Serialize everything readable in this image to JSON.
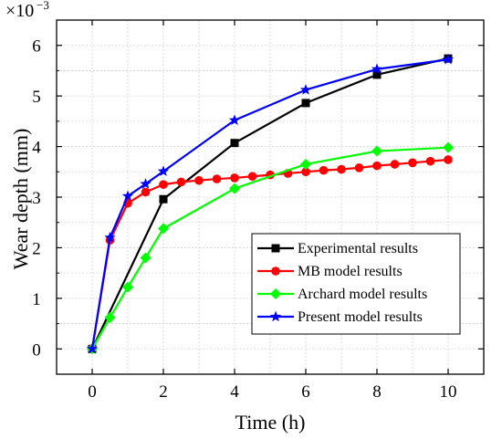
{
  "chart_data": {
    "type": "line",
    "title": "",
    "xlabel": "Time (h)",
    "ylabel": "Wear depth (mm)",
    "y_multiplier": {
      "base": "×10",
      "exponent": "−3"
    },
    "xlim": [
      -1,
      11
    ],
    "ylim": [
      -0.5,
      6.5
    ],
    "xticks": [
      0,
      2,
      4,
      6,
      8,
      10
    ],
    "yticks": [
      0,
      1,
      2,
      3,
      4,
      5,
      6
    ],
    "grid": true,
    "legend_position": "lower-right",
    "series": [
      {
        "name": "Experimental results",
        "color": "#000000",
        "marker": "square",
        "x": [
          0,
          2,
          4,
          6,
          8,
          10
        ],
        "y": [
          0,
          2.96,
          4.07,
          4.86,
          5.42,
          5.74
        ]
      },
      {
        "name": "MB model results",
        "color": "#ff0000",
        "marker": "circle",
        "x": [
          0,
          0.5,
          1,
          1.5,
          2,
          2.5,
          3,
          3.5,
          4,
          4.5,
          5,
          5.5,
          6,
          6.5,
          7,
          7.5,
          8,
          8.5,
          9,
          9.5,
          10
        ],
        "y": [
          0,
          2.15,
          2.88,
          3.1,
          3.25,
          3.3,
          3.33,
          3.36,
          3.38,
          3.41,
          3.44,
          3.47,
          3.5,
          3.53,
          3.55,
          3.58,
          3.62,
          3.65,
          3.68,
          3.71,
          3.74
        ]
      },
      {
        "name": "Archard model results",
        "color": "#00ff00",
        "marker": "diamond",
        "x": [
          0,
          0.5,
          1,
          1.5,
          2,
          4,
          6,
          8,
          10
        ],
        "y": [
          0,
          0.62,
          1.22,
          1.8,
          2.38,
          3.17,
          3.65,
          3.91,
          3.98
        ]
      },
      {
        "name": "Present model results",
        "color": "#0000ff",
        "marker": "star",
        "x": [
          0,
          0.5,
          1,
          1.5,
          2,
          4,
          6,
          8,
          10
        ],
        "y": [
          0,
          2.2,
          3.02,
          3.26,
          3.51,
          4.52,
          5.12,
          5.53,
          5.72
        ]
      }
    ]
  }
}
